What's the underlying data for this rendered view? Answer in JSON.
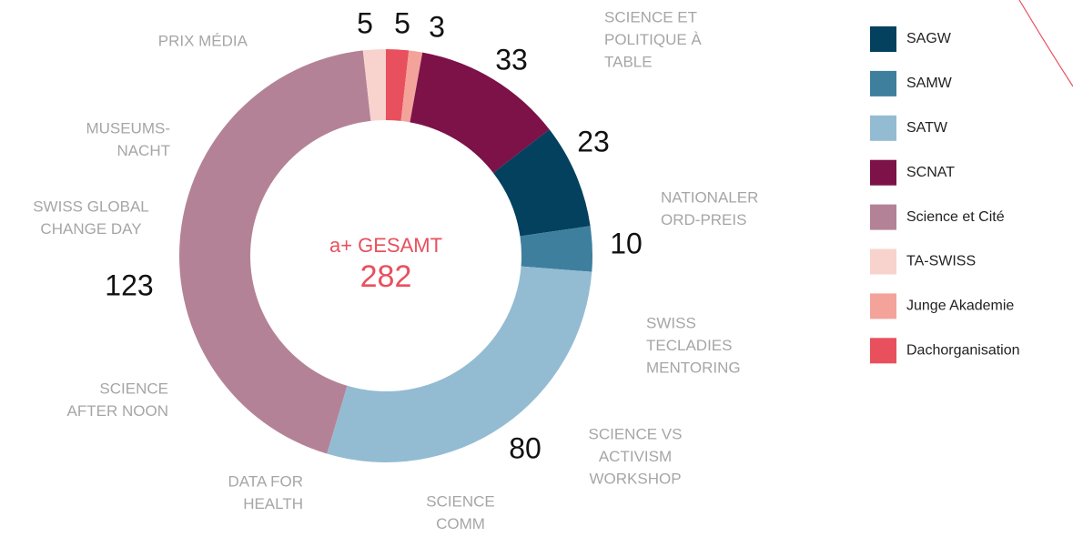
{
  "chart_data": {
    "type": "donut",
    "center_title": "a+ GESAMT",
    "total": 282,
    "series": [
      {
        "name": "SAGW",
        "color": "#03415e",
        "values": [
          23
        ]
      },
      {
        "name": "SAMW",
        "color": "#3f7f9e",
        "values": [
          10
        ]
      },
      {
        "name": "SATW",
        "color": "#93bcd3",
        "values": [
          80
        ]
      },
      {
        "name": "SCNAT",
        "color": "#7c1248",
        "values": [
          33
        ]
      },
      {
        "name": "Science et Cité",
        "color": "#b48296",
        "values": [
          123
        ]
      },
      {
        "name": "TA-SWISS",
        "color": "#f8d3ce",
        "values": [
          5
        ]
      },
      {
        "name": "Junge Akademie",
        "color": "#f3a39a",
        "values": [
          3
        ]
      },
      {
        "name": "Dachorganisation",
        "color": "#e8505e",
        "values": [
          5
        ]
      }
    ],
    "annotations": [
      [
        "PRIX MÉDIA"
      ],
      [
        "SCIENCE ET",
        "POLITIQUE À",
        "TABLE"
      ],
      [
        "MUSEUMS-",
        "NACHT"
      ],
      [
        "SWISS GLOBAL",
        "CHANGE DAY"
      ],
      [
        "NATIONALER",
        "ORD-PREIS"
      ],
      [
        "SWISS",
        "TECLADIES",
        "MENTORING"
      ],
      [
        "SCIENCE",
        "AFTER NOON"
      ],
      [
        "SCIENCE VS",
        "ACTIVISM",
        "WORKSHOP"
      ],
      [
        "DATA FOR",
        "HEALTH"
      ],
      [
        "SCIENCE",
        "COMM"
      ]
    ],
    "legend": "right"
  }
}
